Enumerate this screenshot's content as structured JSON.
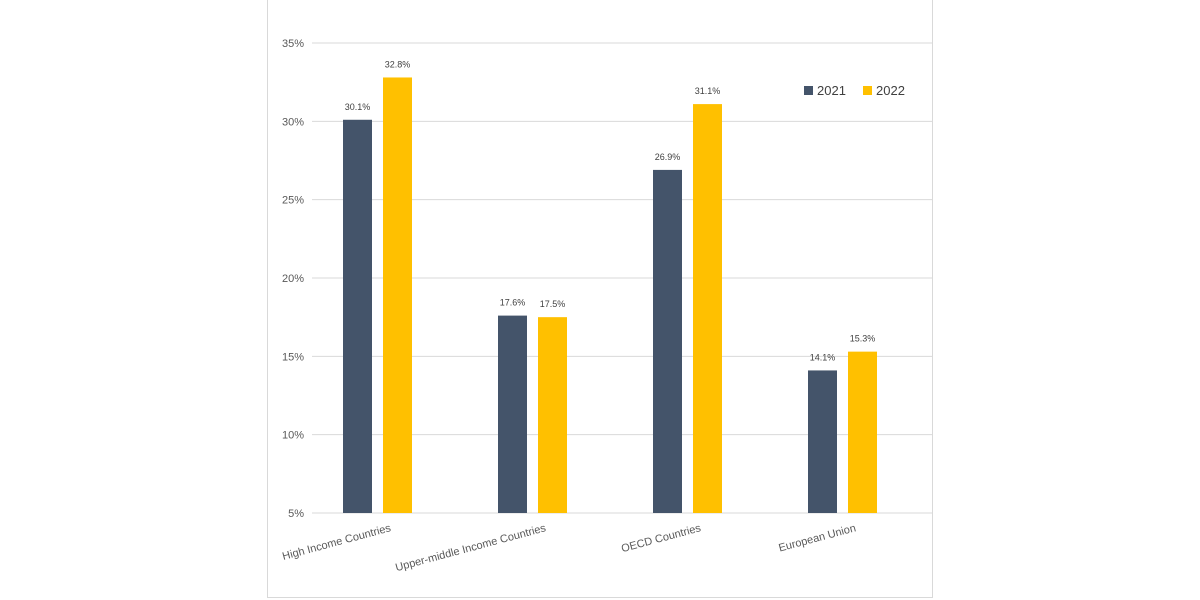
{
  "chart_data": {
    "type": "bar",
    "categories": [
      "High Income Countries",
      "Upper-middle Income Countries",
      "OECD Countries",
      "European Union"
    ],
    "series": [
      {
        "name": "2021",
        "values": [
          30.1,
          17.6,
          26.9,
          14.1
        ],
        "labels": [
          "30.1%",
          "17.6%",
          "26.9%",
          "14.1%"
        ],
        "color": "#44546a"
      },
      {
        "name": "2022",
        "values": [
          32.8,
          17.5,
          31.1,
          15.3
        ],
        "labels": [
          "32.8%",
          "17.5%",
          "31.1%",
          "15.3%"
        ],
        "color": "#ffc000"
      }
    ],
    "ylim": [
      5,
      35
    ],
    "yticks": [
      5,
      10,
      15,
      20,
      25,
      30,
      35
    ],
    "ytick_labels": [
      "5%",
      "10%",
      "15%",
      "20%",
      "25%",
      "30%",
      "35%"
    ],
    "grid": true,
    "legend_position": "top-right",
    "category_label_rotation": "rotated",
    "gridline_color": "#d9d9d9"
  }
}
